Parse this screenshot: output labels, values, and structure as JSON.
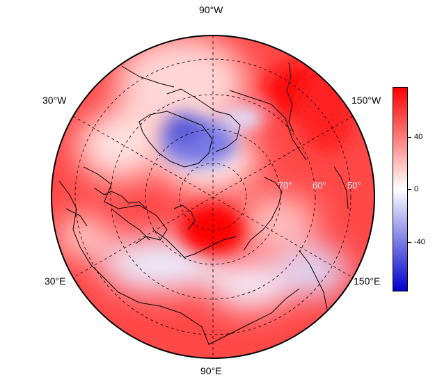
{
  "map": {
    "projection": "north polar stereographic",
    "longitude_labels": {
      "top": "90°W",
      "bottom": "90°E",
      "upper_left": "30°W",
      "upper_right": "150°W",
      "lower_left": "30°E",
      "lower_right": "150°E"
    },
    "latitude_labels": [
      "70°",
      "60°",
      "50°"
    ],
    "gridlines": "dashed"
  },
  "colorbar": {
    "ticks": [
      "40",
      "0",
      "-40"
    ],
    "colors": {
      "high": "#ff0000",
      "mid": "#ffffff",
      "low": "#0000cc"
    }
  }
}
